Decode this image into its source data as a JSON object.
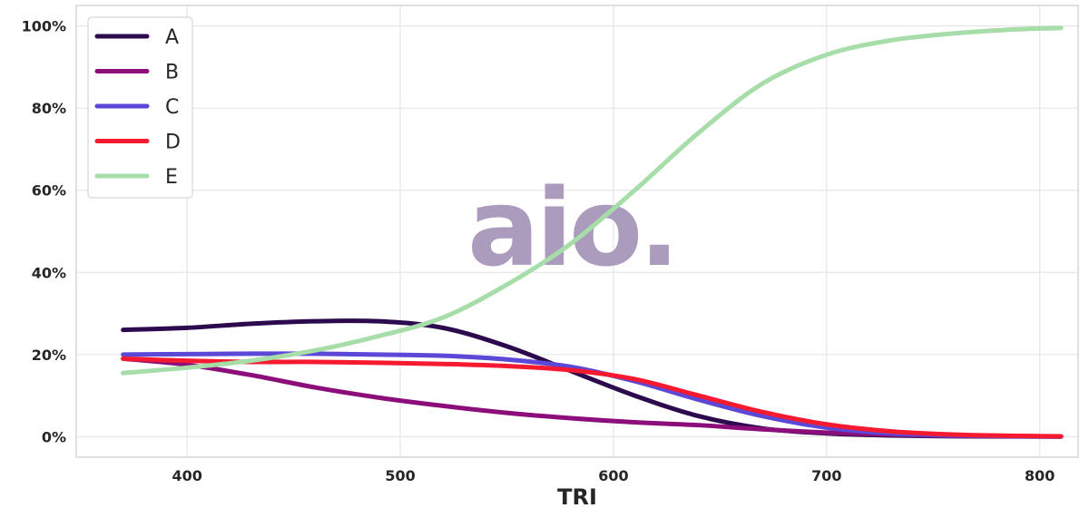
{
  "chart_data": {
    "type": "line",
    "title": "",
    "xlabel": "TRI",
    "ylabel": "",
    "xlim": [
      348,
      818
    ],
    "ylim": [
      -0.05,
      1.05
    ],
    "x_ticks": [
      400,
      500,
      600,
      700,
      800
    ],
    "x_tick_labels": [
      "400",
      "500",
      "600",
      "700",
      "800"
    ],
    "y_ticks": [
      0,
      0.2,
      0.4,
      0.6,
      0.8,
      1.0
    ],
    "y_tick_labels": [
      "0%",
      "20%",
      "40%",
      "60%",
      "80%",
      "100%"
    ],
    "grid": true,
    "legend_position": "top-left",
    "x": [
      370,
      400,
      430,
      460,
      490,
      520,
      550,
      580,
      610,
      640,
      670,
      700,
      730,
      760,
      790,
      810
    ],
    "series": [
      {
        "name": "A",
        "color": "#2d0a4e",
        "values": [
          0.26,
          0.265,
          0.275,
          0.281,
          0.281,
          0.265,
          0.22,
          0.16,
          0.1,
          0.05,
          0.02,
          0.008,
          0.003,
          0.001,
          0.0005,
          0.0002
        ]
      },
      {
        "name": "B",
        "color": "#8c0e7a",
        "values": [
          0.19,
          0.175,
          0.15,
          0.12,
          0.095,
          0.075,
          0.058,
          0.045,
          0.035,
          0.028,
          0.018,
          0.01,
          0.005,
          0.002,
          0.001,
          0.0005
        ]
      },
      {
        "name": "C",
        "color": "#5c48d6",
        "values": [
          0.2,
          0.201,
          0.202,
          0.202,
          0.2,
          0.197,
          0.188,
          0.17,
          0.135,
          0.09,
          0.05,
          0.022,
          0.008,
          0.003,
          0.001,
          0.0005
        ]
      },
      {
        "name": "D",
        "color": "#f51a30",
        "values": [
          0.19,
          0.185,
          0.182,
          0.182,
          0.18,
          0.177,
          0.172,
          0.162,
          0.14,
          0.1,
          0.06,
          0.03,
          0.013,
          0.005,
          0.002,
          0.0008
        ]
      },
      {
        "name": "E",
        "color": "#a6dda8",
        "values": [
          0.155,
          0.168,
          0.185,
          0.21,
          0.245,
          0.29,
          0.37,
          0.47,
          0.6,
          0.74,
          0.86,
          0.93,
          0.965,
          0.982,
          0.992,
          0.995
        ]
      }
    ],
    "watermark": "aio."
  }
}
